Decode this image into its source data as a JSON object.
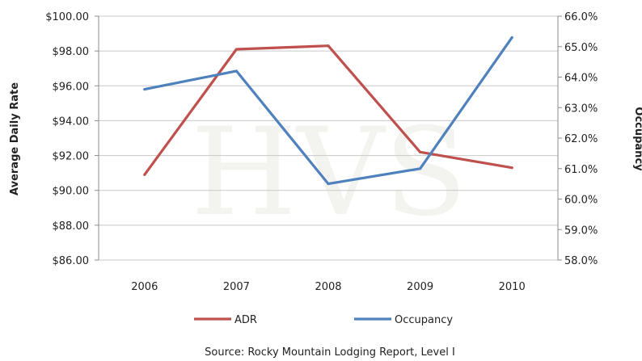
{
  "chart_data": {
    "type": "line",
    "categories": [
      "2006",
      "2007",
      "2008",
      "2009",
      "2010"
    ],
    "series": [
      {
        "name": "ADR",
        "axis": "left",
        "color": "#c0504d",
        "values": [
          90.9,
          98.1,
          98.3,
          92.2,
          91.3
        ]
      },
      {
        "name": "Occupancy",
        "axis": "right",
        "color": "#4f81bd",
        "values": [
          63.6,
          64.2,
          60.5,
          61.0,
          65.3
        ]
      }
    ],
    "left_axis": {
      "label": "Average Daily Rate",
      "ylim": [
        86,
        100
      ],
      "ticks": [
        "$100.00",
        "$98.00",
        "$96.00",
        "$94.00",
        "$92.00",
        "$90.00",
        "$88.00",
        "$86.00"
      ]
    },
    "right_axis": {
      "label": "Occupancy",
      "ylim": [
        58,
        66
      ],
      "ticks": [
        "66.0%",
        "65.0%",
        "64.0%",
        "63.0%",
        "62.0%",
        "61.0%",
        "60.0%",
        "59.0%",
        "58.0%"
      ]
    },
    "grid": true,
    "legend_position": "bottom",
    "watermark": "HVS",
    "source": "Source: Rocky Mountain Lodging Report, Level I"
  }
}
